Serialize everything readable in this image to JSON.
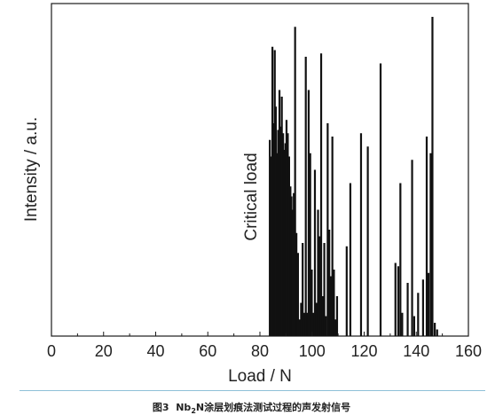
{
  "chart_data": {
    "type": "bar",
    "xlabel": "Load / N",
    "ylabel": "Intensity / a.u.",
    "xlim": [
      0,
      160
    ],
    "ylim": [
      0,
      1
    ],
    "xticks": [
      0,
      20,
      40,
      60,
      80,
      100,
      120,
      140,
      160
    ],
    "grid": false,
    "annotation": {
      "text": "Critical load",
      "x": 84
    },
    "series": [
      {
        "x": [
          83.8,
          84.3,
          84.8,
          85.2,
          85.7,
          86.1,
          86.6,
          87.0,
          87.5,
          88.0,
          88.4,
          88.9,
          89.3,
          89.8,
          90.2,
          90.7,
          91.2,
          91.7,
          92.1,
          92.6,
          93.0,
          93.5,
          94.0,
          94.6,
          95.2,
          95.8,
          96.4,
          97.0,
          97.6,
          98.2,
          98.7,
          99.3,
          99.9,
          100.5,
          101.1,
          101.7,
          102.3,
          102.9,
          103.5,
          104.1,
          104.7,
          105.3,
          106.0,
          106.6,
          107.2,
          107.8,
          108.4,
          109.0,
          109.6,
          113.3,
          114.7,
          118.8,
          121.4,
          126.3,
          132.0,
          133.1,
          133.9,
          134.6,
          136.7,
          138.4,
          139.2,
          140.7,
          142.6,
          144.0,
          144.7,
          145.5,
          146.2,
          147.1,
          148.0
        ],
        "values": [
          0.59,
          0.54,
          0.87,
          0.64,
          0.86,
          0.69,
          0.55,
          0.62,
          0.74,
          0.63,
          0.72,
          0.61,
          0.56,
          0.58,
          0.65,
          0.61,
          0.54,
          0.45,
          0.42,
          0.38,
          0.43,
          0.93,
          0.31,
          0.25,
          0.05,
          0.1,
          0.28,
          0.07,
          0.84,
          0.07,
          0.74,
          0.55,
          0.2,
          0.07,
          0.5,
          0.1,
          0.38,
          0.3,
          0.85,
          0.12,
          0.28,
          0.06,
          0.64,
          0.32,
          0.18,
          0.6,
          0.2,
          0.05,
          0.12,
          0.27,
          0.46,
          0.61,
          0.57,
          0.82,
          0.22,
          0.21,
          0.46,
          0.07,
          0.16,
          0.53,
          0.06,
          0.13,
          0.17,
          0.6,
          0.19,
          0.55,
          0.96,
          0.04,
          0.02
        ]
      }
    ]
  },
  "caption": {
    "prefix": "图3",
    "formula_main": "Nb",
    "formula_sub": "2",
    "formula_rest": "N",
    "text": "涂层划痕法测试过程的声发射信号"
  }
}
